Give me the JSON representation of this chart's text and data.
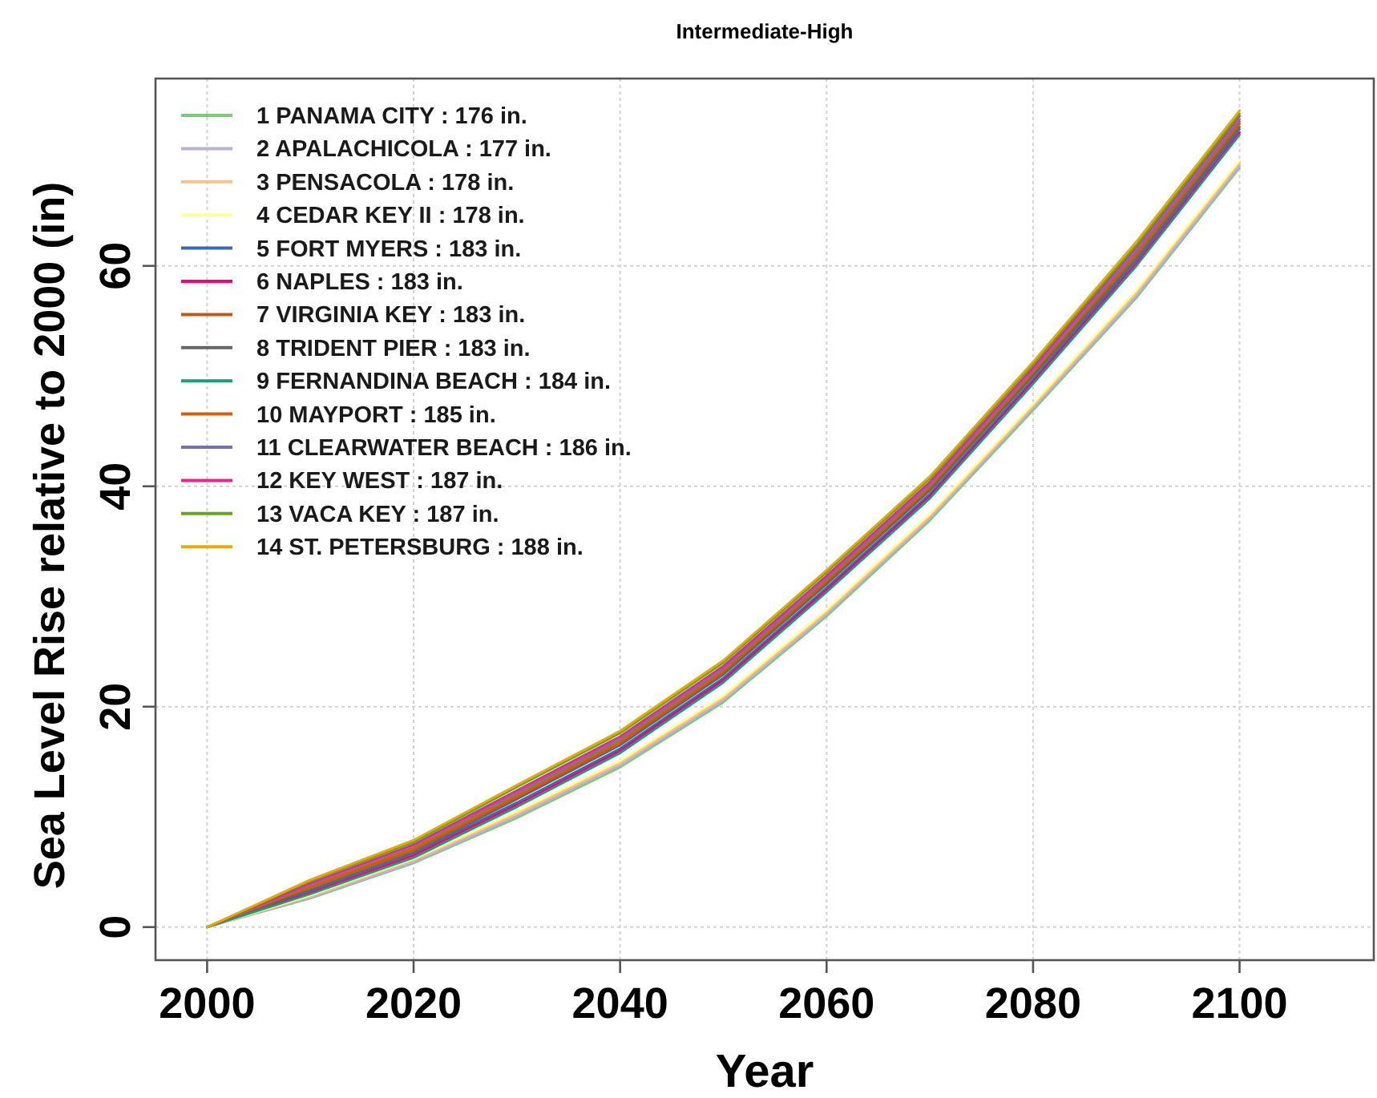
{
  "chart_data": {
    "type": "line",
    "title": "Intermediate-High",
    "xlabel": "Year",
    "ylabel": "Sea Level Rise relative to 2000 (in)",
    "x": [
      2000,
      2010,
      2020,
      2030,
      2040,
      2050,
      2060,
      2070,
      2080,
      2090,
      2100
    ],
    "xlim": [
      1995,
      2113
    ],
    "xticks": [
      2000,
      2020,
      2040,
      2060,
      2080,
      2100
    ],
    "ylim": [
      -3,
      77
    ],
    "yticks": [
      0,
      20,
      40,
      60
    ],
    "grid": true,
    "legend": "top left",
    "series": [
      {
        "name": "1 PANAMA CITY : 176 in.",
        "color": "#7fc97f",
        "values": [
          0,
          2.6,
          5.8,
          9.9,
          14.5,
          20.4,
          28.2,
          36.9,
          46.9,
          57.1,
          68.9
        ]
      },
      {
        "name": "2 APALACHICOLA : 177 in.",
        "color": "#beaed4",
        "values": [
          0,
          2.7,
          5.9,
          10.1,
          14.7,
          20.6,
          28.4,
          37.1,
          47.1,
          57.3,
          69.1
        ]
      },
      {
        "name": "3 PENSACOLA : 178 in.",
        "color": "#fdc086",
        "values": [
          0,
          2.8,
          6.1,
          10.3,
          14.9,
          20.8,
          28.6,
          37.3,
          47.3,
          57.6,
          69.4
        ]
      },
      {
        "name": "4 CEDAR KEY II : 178 in.",
        "color": "#ffff99",
        "values": [
          0,
          2.9,
          6.2,
          10.5,
          15.1,
          21.0,
          28.8,
          37.5,
          47.5,
          57.8,
          69.6
        ]
      },
      {
        "name": "5 FORT MYERS : 183 in.",
        "color": "#386cb0",
        "values": [
          0,
          3.3,
          6.7,
          11.3,
          16.2,
          22.6,
          30.8,
          39.3,
          49.7,
          60.5,
          72.4
        ]
      },
      {
        "name": "6 NAPLES : 183 in.",
        "color": "#f0027f",
        "values": [
          0,
          3.1,
          6.5,
          11.1,
          16.0,
          22.4,
          30.6,
          39.1,
          49.5,
          60.2,
          72.1
        ]
      },
      {
        "name": "7 VIRGINIA KEY : 183 in.",
        "color": "#bf5b17",
        "values": [
          0,
          3.6,
          7.0,
          11.8,
          16.7,
          23.1,
          31.3,
          39.8,
          50.2,
          61.0,
          72.9
        ]
      },
      {
        "name": "8 TRIDENT PIER : 183 in.",
        "color": "#666666",
        "values": [
          0,
          3.4,
          6.8,
          11.6,
          16.5,
          22.9,
          31.1,
          39.6,
          50.0,
          60.7,
          72.6
        ]
      },
      {
        "name": "9 FERNANDINA BEACH : 184 in.",
        "color": "#1b9e77",
        "values": [
          0,
          3.0,
          6.3,
          10.9,
          15.8,
          22.2,
          30.4,
          38.9,
          49.3,
          60.0,
          71.9
        ]
      },
      {
        "name": "10 MAYPORT : 185 in.",
        "color": "#d95f02",
        "values": [
          0,
          3.7,
          7.2,
          12.0,
          16.9,
          23.3,
          31.5,
          40.0,
          50.4,
          61.2,
          73.1
        ]
      },
      {
        "name": "11 CLEARWATER BEACH : 186 in.",
        "color": "#7570b3",
        "values": [
          0,
          3.9,
          7.4,
          12.2,
          17.1,
          23.5,
          31.7,
          40.2,
          50.6,
          61.4,
          73.3
        ]
      },
      {
        "name": "12 KEY WEST : 187 in.",
        "color": "#e7298a",
        "values": [
          0,
          4.0,
          7.5,
          12.4,
          17.3,
          23.7,
          31.9,
          40.4,
          50.8,
          61.7,
          73.6
        ]
      },
      {
        "name": "13 VACA KEY : 187 in.",
        "color": "#66a61e",
        "values": [
          0,
          4.2,
          7.7,
          12.7,
          17.6,
          24.0,
          32.2,
          40.7,
          51.1,
          61.9,
          73.8
        ]
      },
      {
        "name": "14 ST. PETERSBURG : 188 in.",
        "color": "#e6ab02",
        "values": [
          0,
          4.3,
          7.9,
          12.9,
          17.8,
          24.2,
          32.4,
          40.9,
          51.3,
          62.2,
          74.1
        ]
      }
    ]
  }
}
